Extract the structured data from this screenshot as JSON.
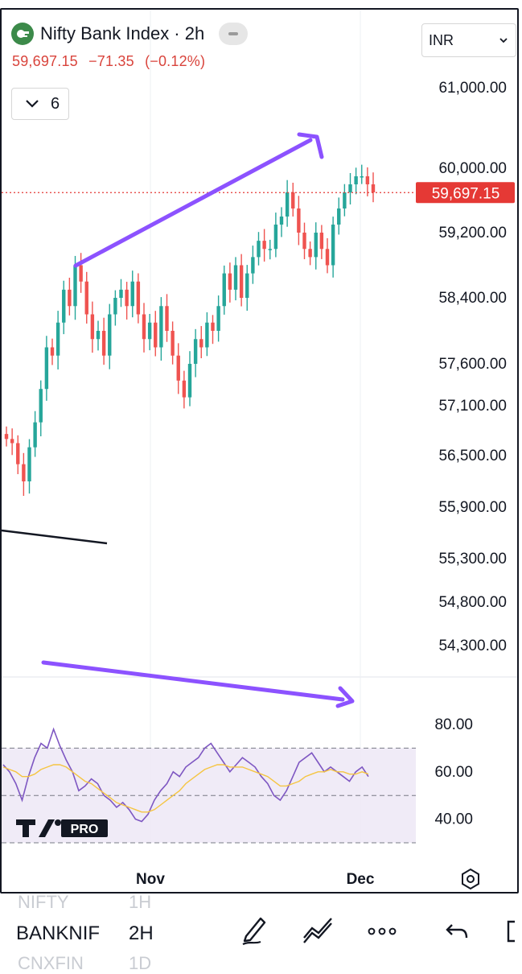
{
  "header": {
    "title": "Nifty Bank Index · 2h",
    "price": "59,697.15",
    "change": "−71.35",
    "change_pct": "(−0.12%)",
    "collapse_count": "6",
    "currency": "INR"
  },
  "price_axis": {
    "labels": [
      "61,000.00",
      "60,000.00",
      "59,200.00",
      "58,400.00",
      "57,600.00",
      "57,100.00",
      "56,500.00",
      "55,900.00",
      "55,300.00",
      "54,800.00",
      "54,300.00"
    ],
    "current_price_label": "59,697.15"
  },
  "rsi_axis": {
    "labels": [
      "80.00",
      "60.00",
      "40.00"
    ]
  },
  "time_axis": {
    "labels": [
      "Nov",
      "Dec"
    ]
  },
  "watermark": "PRO",
  "colors": {
    "up": "#26a69a",
    "down": "#ef5350",
    "accent": "#8c52ff",
    "rsi": "#7e57c2",
    "rsi_ma": "#f5c542",
    "price_line": "#e53935"
  },
  "chart_data": {
    "type": "candlestick",
    "price_scale": [
      54300,
      61000
    ],
    "closes": [
      56700,
      56650,
      56400,
      56200,
      56600,
      56900,
      57300,
      57800,
      57700,
      58100,
      58500,
      58300,
      58800,
      58600,
      58200,
      57900,
      58000,
      57700,
      58200,
      58400,
      58500,
      58300,
      58600,
      58200,
      57900,
      58100,
      57800,
      58300,
      58000,
      57700,
      57400,
      57200,
      57600,
      57900,
      57800,
      58100,
      58000,
      58300,
      58700,
      58500,
      58800,
      58400,
      58700,
      58900,
      59100,
      59000,
      59000,
      59300,
      59400,
      59700,
      59500,
      59200,
      59000,
      58900,
      59200,
      59000,
      58800,
      59300,
      59500,
      59700,
      59800,
      59900,
      59900,
      59800,
      59700
    ],
    "rsi": {
      "levels": [
        70,
        50,
        30
      ],
      "values": [
        63,
        60,
        55,
        48,
        58,
        66,
        72,
        70,
        78,
        71,
        65,
        60,
        52,
        54,
        57,
        55,
        50,
        48,
        45,
        47,
        44,
        40,
        39,
        42,
        48,
        52,
        55,
        60,
        58,
        62,
        64,
        66,
        70,
        72,
        68,
        64,
        60,
        63,
        66,
        64,
        62,
        58,
        55,
        50,
        48,
        52,
        58,
        64,
        66,
        68,
        64,
        60,
        62,
        60,
        58,
        56,
        60,
        62,
        58
      ],
      "ma": [
        62,
        61,
        60,
        58,
        58,
        59,
        61,
        62,
        63,
        63,
        62,
        60,
        58,
        56,
        55,
        53,
        51,
        49,
        47,
        46,
        45,
        44,
        43,
        43,
        44,
        46,
        48,
        50,
        52,
        55,
        57,
        59,
        61,
        62,
        63,
        63,
        62,
        62,
        62,
        61,
        60,
        59,
        58,
        56,
        54,
        54,
        55,
        56,
        58,
        59,
        60,
        60,
        61,
        60,
        60,
        59,
        59,
        60,
        59
      ],
      "yrange": [
        30,
        80
      ]
    },
    "xlabels": [
      "Nov",
      "Dec"
    ]
  },
  "bottom": {
    "symbols": [
      {
        "label": "NIFTY",
        "interval": "1H"
      },
      {
        "label": "BANKNIF",
        "interval": "2H"
      },
      {
        "label": "CNXFIN",
        "interval": "1D"
      }
    ]
  },
  "icons": [
    "draw-icon",
    "trend-icon",
    "more-icon",
    "undo-icon",
    "redo-icon",
    "settings-icon"
  ]
}
